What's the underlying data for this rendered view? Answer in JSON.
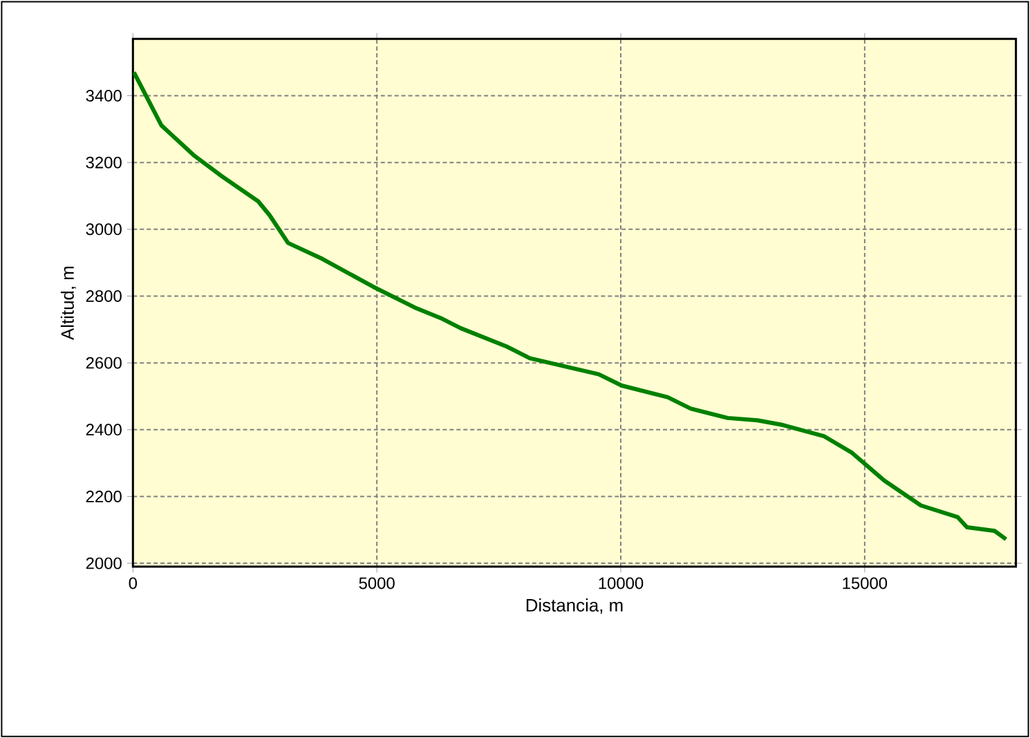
{
  "chart_data": {
    "type": "line",
    "xlabel": "Distancia, m",
    "ylabel": "Altitud, m",
    "x": [
      20,
      585,
      1245,
      1811,
      2566,
      2802,
      3180,
      3887,
      4925,
      5774,
      6340,
      6717,
      7662,
      8133,
      9548,
      10020,
      10963,
      11435,
      12190,
      12802,
      13322,
      14172,
      14738,
      15398,
      16153,
      16907,
      17096,
      17662,
      17897
    ],
    "series": [
      {
        "color": "#008000",
        "values": [
          3470,
          3311,
          3222,
          3160,
          3084,
          3042,
          2959,
          2911,
          2828,
          2766,
          2732,
          2704,
          2649,
          2614,
          2566,
          2532,
          2497,
          2463,
          2435,
          2428,
          2414,
          2380,
          2331,
          2248,
          2173,
          2138,
          2108,
          2097,
          2072
        ]
      }
    ],
    "xlim": [
      0,
      18100
    ],
    "ylim": [
      1990,
      3570
    ],
    "xticks": [
      0,
      5000,
      10000,
      15000
    ],
    "yticks": [
      2000,
      2200,
      2400,
      2600,
      2800,
      3000,
      3200,
      3400
    ],
    "grid": true,
    "marker": "none",
    "line_style": "solid"
  }
}
